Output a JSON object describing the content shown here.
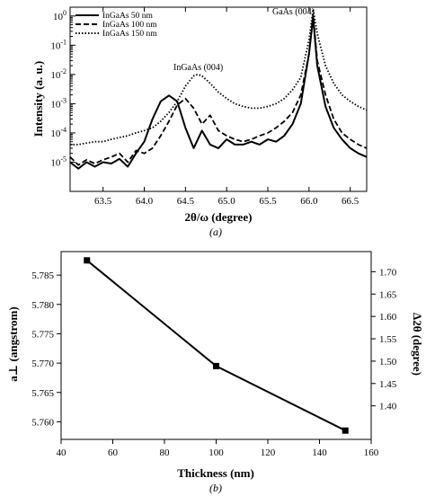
{
  "chart_data": [
    {
      "type": "line",
      "panel_label": "(a)",
      "xlabel": "2θ/ω (degree)",
      "ylabel": "Intensity (a. u.)",
      "xlim": [
        63.1,
        66.7
      ],
      "ylim": [
        1e-06,
        2
      ],
      "yscale": "log",
      "x_ticks": [
        "63.5",
        "64.0",
        "64.5",
        "65.0",
        "65.5",
        "66.0",
        "66.5"
      ],
      "y_ticks": [
        "10^-5",
        "10^-4",
        "10^-3",
        "10^-2",
        "10^-1",
        "10^0"
      ],
      "legend_position": "top-left",
      "annotations": [
        {
          "text": "GaAs (004)",
          "x": 66.05,
          "y": 1.0
        },
        {
          "text": "InGaAs (004)",
          "x": 64.65,
          "y": 0.02
        }
      ],
      "series": [
        {
          "name": "InGaAs 50 nm",
          "style": "solid",
          "x": [
            63.1,
            63.2,
            63.3,
            63.4,
            63.5,
            63.6,
            63.7,
            63.8,
            63.9,
            64.0,
            64.1,
            64.2,
            64.3,
            64.4,
            64.5,
            64.6,
            64.7,
            64.8,
            64.9,
            65.0,
            65.1,
            65.2,
            65.3,
            65.4,
            65.5,
            65.6,
            65.7,
            65.8,
            65.9,
            66.0,
            66.05,
            66.1,
            66.2,
            66.3,
            66.4,
            66.5,
            66.6,
            66.7
          ],
          "y": [
            1e-05,
            6e-06,
            1e-05,
            7e-06,
            1e-05,
            9e-06,
            1.3e-05,
            7e-06,
            2e-05,
            5e-05,
            0.0003,
            0.0012,
            0.0019,
            0.0012,
            0.00015,
            3e-05,
            0.00012,
            4e-05,
            3e-05,
            6e-05,
            4e-05,
            4e-05,
            5e-05,
            4e-05,
            6e-05,
            5e-05,
            8e-05,
            0.0002,
            0.001,
            0.05,
            0.9,
            0.02,
            0.0008,
            0.00015,
            6e-05,
            3e-05,
            2e-05,
            1.5e-05
          ]
        },
        {
          "name": "InGaAs 100 nm",
          "style": "dashed",
          "x": [
            63.1,
            63.2,
            63.3,
            63.4,
            63.5,
            63.6,
            63.7,
            63.8,
            63.9,
            64.0,
            64.1,
            64.2,
            64.3,
            64.4,
            64.5,
            64.6,
            64.7,
            64.8,
            64.9,
            65.0,
            65.1,
            65.2,
            65.3,
            65.4,
            65.5,
            65.6,
            65.7,
            65.8,
            65.9,
            66.0,
            66.05,
            66.1,
            66.2,
            66.3,
            66.4,
            66.5,
            66.6,
            66.7
          ],
          "y": [
            1.5e-05,
            8e-06,
            1.2e-05,
            9e-06,
            1.2e-05,
            1.5e-05,
            2e-05,
            1e-05,
            2.5e-05,
            2e-05,
            3e-05,
            8e-05,
            0.00025,
            0.0009,
            0.0015,
            0.0007,
            0.0002,
            0.0004,
            0.00012,
            8e-05,
            6e-05,
            5e-05,
            6e-05,
            8e-05,
            0.0001,
            0.00015,
            0.00025,
            0.0005,
            0.002,
            0.05,
            1.1,
            0.03,
            0.002,
            0.0003,
            0.0001,
            6e-05,
            4e-05,
            3e-05
          ]
        },
        {
          "name": "InGaAs 150 nm",
          "style": "dotted",
          "x": [
            63.1,
            63.2,
            63.3,
            63.4,
            63.5,
            63.6,
            63.7,
            63.8,
            63.9,
            64.0,
            64.1,
            64.2,
            64.3,
            64.4,
            64.5,
            64.6,
            64.65,
            64.7,
            64.8,
            64.9,
            65.0,
            65.1,
            65.2,
            65.3,
            65.4,
            65.5,
            65.6,
            65.7,
            65.8,
            65.9,
            66.0,
            66.05,
            66.1,
            66.2,
            66.3,
            66.4,
            66.5,
            66.6,
            66.7
          ],
          "y": [
            4e-05,
            4e-05,
            4.5e-05,
            5e-05,
            5e-05,
            6e-05,
            7e-05,
            8e-05,
            0.0001,
            0.00012,
            0.00015,
            0.00025,
            0.0005,
            0.0012,
            0.004,
            0.009,
            0.01,
            0.009,
            0.005,
            0.0025,
            0.0015,
            0.001,
            0.0008,
            0.0007,
            0.0007,
            0.0008,
            0.001,
            0.0015,
            0.003,
            0.008,
            0.15,
            1.7,
            0.25,
            0.02,
            0.005,
            0.002,
            0.0012,
            0.0008,
            0.0006
          ]
        }
      ]
    },
    {
      "type": "line",
      "panel_label": "(b)",
      "xlabel": "Thickness (nm)",
      "ylabel": "a⊥ (angstrom)",
      "y2label": "Δ2θ (degree)",
      "xlim": [
        40,
        160
      ],
      "ylim": [
        5.757,
        5.789
      ],
      "y2lim": [
        1.325,
        1.745
      ],
      "x_ticks": [
        40,
        60,
        80,
        100,
        120,
        140,
        160
      ],
      "y_ticks": [
        "5.760",
        "5.765",
        "5.770",
        "5.775",
        "5.780",
        "5.785"
      ],
      "y2_ticks": [
        "1.40",
        "1.45",
        "1.50",
        "1.55",
        "1.60",
        "1.65",
        "1.70"
      ],
      "series": [
        {
          "name": "",
          "marker": "square",
          "x": [
            50,
            100,
            150
          ],
          "y": [
            5.7875,
            5.7695,
            5.7585
          ]
        }
      ]
    }
  ]
}
